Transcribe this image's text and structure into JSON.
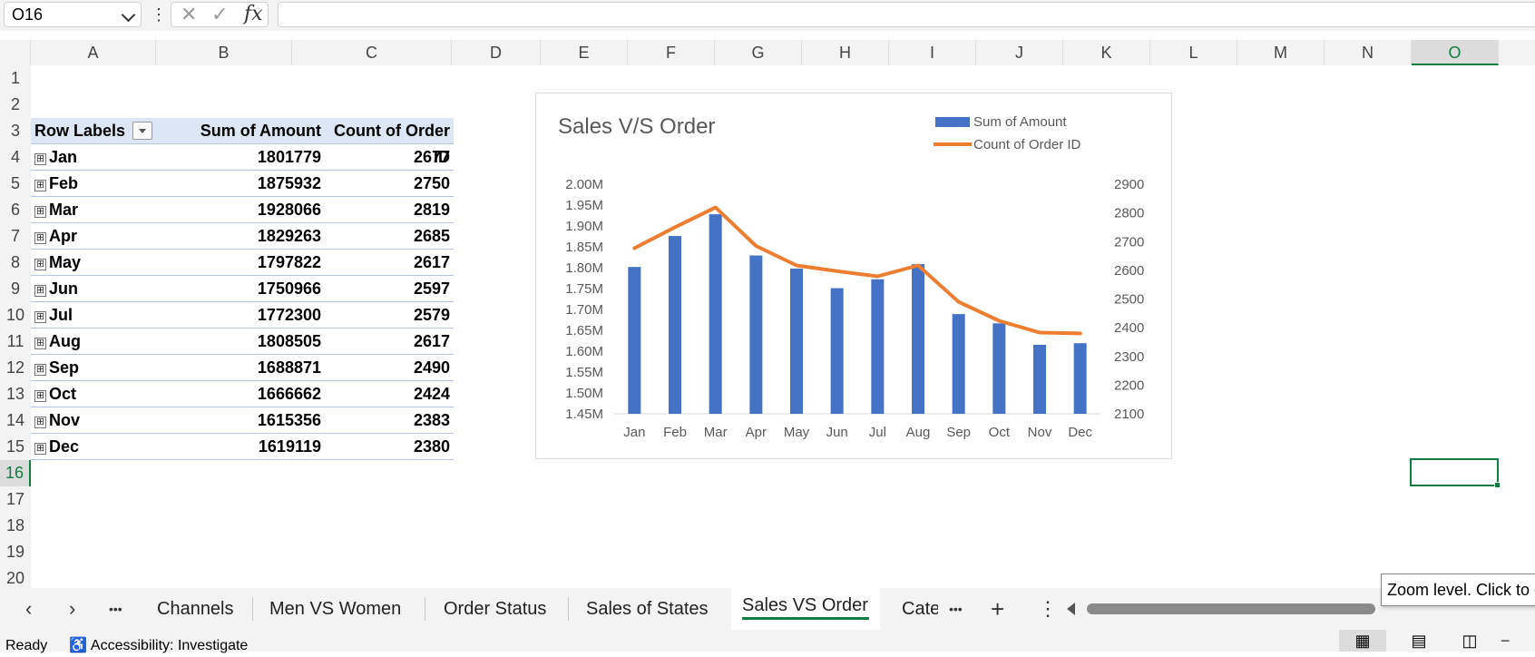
{
  "formula_bar": {
    "name_box": "O16",
    "cancel_icon": "✕",
    "enter_icon": "✓",
    "fx_label": "fx",
    "formula": ""
  },
  "columns": [
    "A",
    "B",
    "C",
    "D",
    "E",
    "F",
    "G",
    "H",
    "I",
    "J",
    "K",
    "L",
    "M",
    "N",
    "O"
  ],
  "selected_column": "O",
  "rows": [
    "1",
    "2",
    "3",
    "4",
    "5",
    "6",
    "7",
    "8",
    "9",
    "10",
    "11",
    "12",
    "13",
    "14",
    "15",
    "16",
    "17",
    "18",
    "19",
    "20"
  ],
  "selected_row": "16",
  "pivot": {
    "headers": [
      "Row Labels",
      "Sum of Amount",
      "Count of Order ID"
    ],
    "expand_symbol": "⊞",
    "rows": [
      {
        "label": "Jan",
        "amount": "1801779",
        "count": "2677"
      },
      {
        "label": "Feb",
        "amount": "1875932",
        "count": "2750"
      },
      {
        "label": "Mar",
        "amount": "1928066",
        "count": "2819"
      },
      {
        "label": "Apr",
        "amount": "1829263",
        "count": "2685"
      },
      {
        "label": "May",
        "amount": "1797822",
        "count": "2617"
      },
      {
        "label": "Jun",
        "amount": "1750966",
        "count": "2597"
      },
      {
        "label": "Jul",
        "amount": "1772300",
        "count": "2579"
      },
      {
        "label": "Aug",
        "amount": "1808505",
        "count": "2617"
      },
      {
        "label": "Sep",
        "amount": "1688871",
        "count": "2490"
      },
      {
        "label": "Oct",
        "amount": "1666662",
        "count": "2424"
      },
      {
        "label": "Nov",
        "amount": "1615356",
        "count": "2383"
      },
      {
        "label": "Dec",
        "amount": "1619119",
        "count": "2380"
      }
    ]
  },
  "chart_data": {
    "type": "bar",
    "title": "Sales V/S Order",
    "categories": [
      "Jan",
      "Feb",
      "Mar",
      "Apr",
      "May",
      "Jun",
      "Jul",
      "Aug",
      "Sep",
      "Oct",
      "Nov",
      "Dec"
    ],
    "series": [
      {
        "name": "Sum of Amount",
        "type": "bar",
        "axis": "primary",
        "color": "#4472c4",
        "values": [
          1801779,
          1875932,
          1928066,
          1829263,
          1797822,
          1750966,
          1772300,
          1808505,
          1688871,
          1666662,
          1615356,
          1619119
        ]
      },
      {
        "name": "Count of Order ID",
        "type": "line",
        "axis": "secondary",
        "color": "#ed7d31",
        "values": [
          2677,
          2750,
          2819,
          2685,
          2617,
          2597,
          2579,
          2617,
          2490,
          2424,
          2383,
          2380
        ]
      }
    ],
    "y_primary": {
      "min": 1450000,
      "max": 2000000,
      "step": 50000,
      "tick_labels": [
        "1.45M",
        "1.50M",
        "1.55M",
        "1.60M",
        "1.65M",
        "1.70M",
        "1.75M",
        "1.80M",
        "1.85M",
        "1.90M",
        "1.95M",
        "2.00M"
      ]
    },
    "y_secondary": {
      "min": 2100,
      "max": 2900,
      "step": 100,
      "tick_labels": [
        "2100",
        "2200",
        "2300",
        "2400",
        "2500",
        "2600",
        "2700",
        "2800",
        "2900"
      ]
    },
    "legend": "top-right",
    "grid": false
  },
  "sheet_tabs": {
    "tabs": [
      "Channels",
      "Men VS Women",
      "Order Status",
      "Sales of States",
      "Sales VS Order",
      "Cate"
    ],
    "active": "Sales VS Order",
    "prev_icon": "‹",
    "next_icon": "›",
    "more_icon": "•••",
    "add_icon": "+",
    "options_icon": "⋮"
  },
  "tooltip": "Zoom level. Click to open the Zoom dialog",
  "status_bar": {
    "ready": "Ready",
    "accessibility": "Accessibility: Investigate"
  }
}
